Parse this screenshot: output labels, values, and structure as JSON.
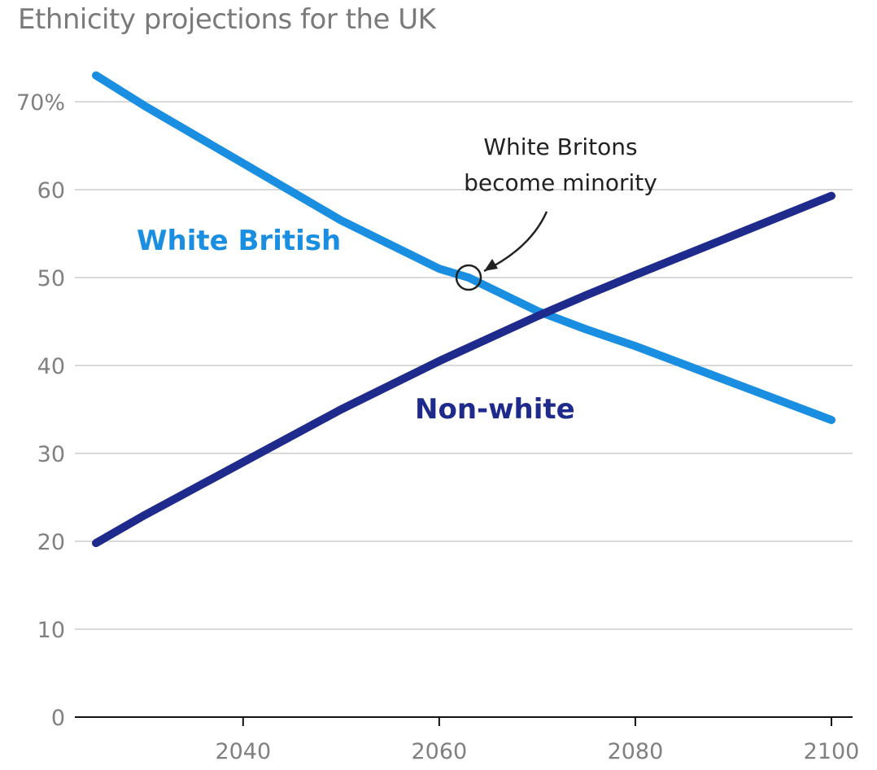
{
  "chart_data": {
    "type": "line",
    "title": "Ethnicity projections for the UK",
    "xlim": [
      2025,
      2100
    ],
    "ylim": [
      0,
      75
    ],
    "x_ticks": [
      2040,
      2060,
      2080,
      2100
    ],
    "x_tick_labels": [
      "2040",
      "2060",
      "2080",
      "2100"
    ],
    "y_ticks": [
      0,
      10,
      20,
      30,
      40,
      50,
      60,
      70
    ],
    "y_tick_labels": [
      "0",
      "10",
      "20",
      "30",
      "40",
      "50",
      "60",
      "70%"
    ],
    "grid": true,
    "series": [
      {
        "name": "White British",
        "color": "#1a8ee0",
        "x": [
          2025,
          2030,
          2040,
          2050,
          2060,
          2063,
          2070,
          2075,
          2080,
          2090,
          2100
        ],
        "y": [
          73,
          69.5,
          63,
          56.5,
          51,
          50,
          46.2,
          44.1,
          42.2,
          38,
          33.8
        ]
      },
      {
        "name": "Non-white",
        "color": "#1e2a8c",
        "x": [
          2025,
          2030,
          2040,
          2050,
          2060,
          2070,
          2075,
          2080,
          2090,
          2100
        ],
        "y": [
          19.8,
          23,
          29,
          35,
          40.5,
          45.6,
          48,
          50.3,
          54.8,
          59.3
        ]
      }
    ],
    "annotations": [
      {
        "lines": [
          "White Britons",
          "become minority"
        ],
        "x": 2063,
        "y": 50
      }
    ]
  }
}
